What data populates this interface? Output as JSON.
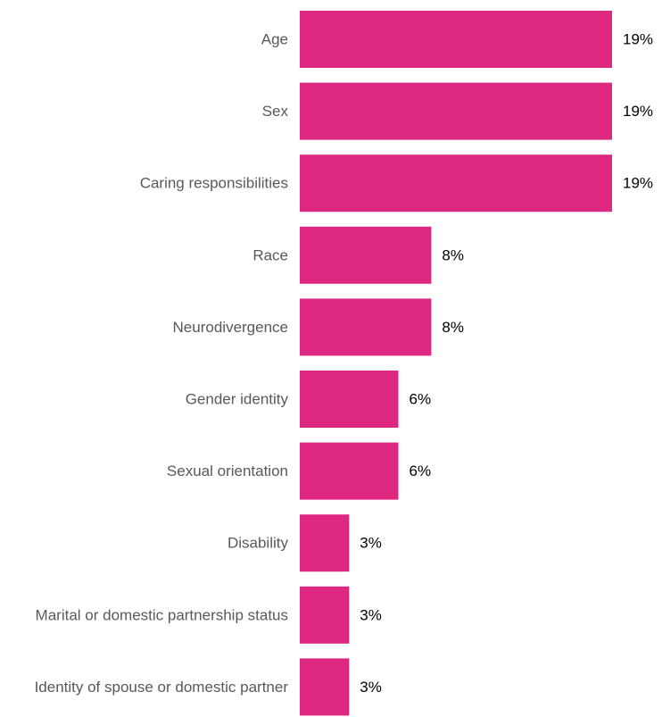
{
  "chart_data": {
    "type": "bar",
    "orientation": "horizontal",
    "categories": [
      "Age",
      "Sex",
      "Caring responsibilities",
      "Race",
      "Neurodivergence",
      "Gender identity",
      "Sexual orientation",
      "Disability",
      "Marital or domestic partnership status",
      "Identity of spouse or domestic partner"
    ],
    "values": [
      19,
      19,
      19,
      8,
      8,
      6,
      6,
      3,
      3,
      3
    ],
    "value_labels": [
      "19%",
      "19%",
      "19%",
      "8%",
      "8%",
      "6%",
      "6%",
      "3%",
      "3%",
      "3%"
    ],
    "title": "",
    "xlabel": "",
    "ylabel": "",
    "grid": false,
    "colors": {
      "bar": "#de2780",
      "category_text": "#595959",
      "value_text": "#000000"
    }
  }
}
